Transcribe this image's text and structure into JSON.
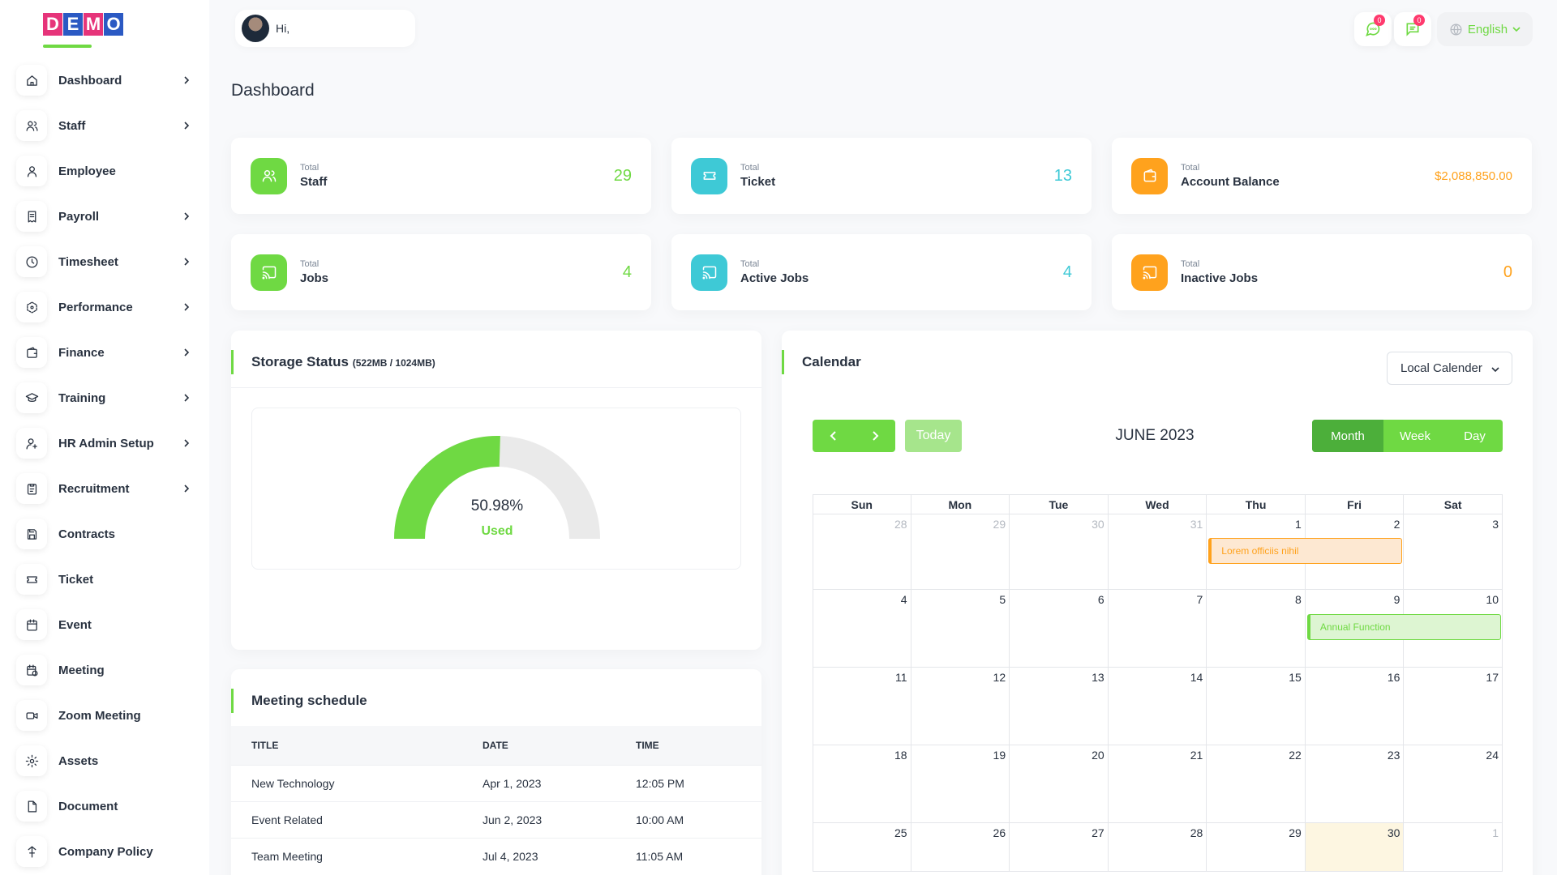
{
  "brand": {
    "logo_letters": [
      "D",
      "E",
      "M",
      "O"
    ],
    "logo_colors": [
      "#e6347a",
      "#2b59c3",
      "#e6347a",
      "#2b59c3"
    ],
    "accent": "#6fd943"
  },
  "header": {
    "greeting": "Hi,",
    "chat_badge": "0",
    "message_badge": "0",
    "language": "English"
  },
  "sidebar": {
    "items": [
      {
        "label": "Dashboard",
        "icon": "home-icon",
        "has_arrow": true
      },
      {
        "label": "Staff",
        "icon": "users-icon",
        "has_arrow": true
      },
      {
        "label": "Employee",
        "icon": "user-icon",
        "has_arrow": false
      },
      {
        "label": "Payroll",
        "icon": "receipt-icon",
        "has_arrow": true
      },
      {
        "label": "Timesheet",
        "icon": "clock-icon",
        "has_arrow": true
      },
      {
        "label": "Performance",
        "icon": "hexagon-icon",
        "has_arrow": true
      },
      {
        "label": "Finance",
        "icon": "wallet-icon",
        "has_arrow": true
      },
      {
        "label": "Training",
        "icon": "graduation-cap-icon",
        "has_arrow": true
      },
      {
        "label": "HR Admin Setup",
        "icon": "user-plus-icon",
        "has_arrow": true
      },
      {
        "label": "Recruitment",
        "icon": "clipboard-icon",
        "has_arrow": true
      },
      {
        "label": "Contracts",
        "icon": "save-icon",
        "has_arrow": false
      },
      {
        "label": "Ticket",
        "icon": "ticket-icon",
        "has_arrow": false
      },
      {
        "label": "Event",
        "icon": "calendar-icon",
        "has_arrow": false
      },
      {
        "label": "Meeting",
        "icon": "calendar-time-icon",
        "has_arrow": false
      },
      {
        "label": "Zoom Meeting",
        "icon": "video-icon",
        "has_arrow": false
      },
      {
        "label": "Assets",
        "icon": "cog-icon",
        "has_arrow": false
      },
      {
        "label": "Document",
        "icon": "file-icon",
        "has_arrow": false
      },
      {
        "label": "Company Policy",
        "icon": "policy-icon",
        "has_arrow": false
      }
    ]
  },
  "page_title": "Dashboard",
  "stats": [
    {
      "small": "Total",
      "name": "Staff",
      "value": "29",
      "color": "#6fd943",
      "icon": "users-icon"
    },
    {
      "small": "Total",
      "name": "Ticket",
      "value": "13",
      "color": "#3ec9d6",
      "icon": "ticket-icon"
    },
    {
      "small": "Total",
      "name": "Account Balance",
      "value": "$2,088,850.00",
      "color": "#ffa21d",
      "icon": "wallet-icon"
    },
    {
      "small": "Total",
      "name": "Jobs",
      "value": "4",
      "color": "#6fd943",
      "icon": "cast-icon"
    },
    {
      "small": "Total",
      "name": "Active Jobs",
      "value": "4",
      "color": "#3ec9d6",
      "icon": "cast-icon"
    },
    {
      "small": "Total",
      "name": "Inactive Jobs",
      "value": "0",
      "color": "#ffa21d",
      "icon": "cast-icon"
    }
  ],
  "storage": {
    "title": "Storage Status",
    "subtitle": "(522MB / 1024MB)",
    "percent_text": "50.98%",
    "used_label": "Used",
    "fraction": 0.5098
  },
  "meetings": {
    "title": "Meeting schedule",
    "columns": [
      "TITLE",
      "DATE",
      "TIME"
    ],
    "rows": [
      [
        "New Technology",
        "Apr 1, 2023",
        "12:05 PM"
      ],
      [
        "Event Related",
        "Jun 2, 2023",
        "10:00 AM"
      ],
      [
        "Team Meeting",
        "Jul 4, 2023",
        "11:05 AM"
      ]
    ]
  },
  "calendar": {
    "title": "Calendar",
    "source": "Local Calender",
    "today_label": "Today",
    "month_title": "JUNE 2023",
    "views": [
      "Month",
      "Week",
      "Day"
    ],
    "active_view": "Month",
    "weekdays": [
      "Sun",
      "Mon",
      "Tue",
      "Wed",
      "Thu",
      "Fri",
      "Sat"
    ],
    "weeks": [
      [
        "28",
        "29",
        "30",
        "31",
        "1",
        "2",
        "3"
      ],
      [
        "4",
        "5",
        "6",
        "7",
        "8",
        "9",
        "10"
      ],
      [
        "11",
        "12",
        "13",
        "14",
        "15",
        "16",
        "17"
      ],
      [
        "18",
        "19",
        "20",
        "21",
        "22",
        "23",
        "24"
      ],
      [
        "25",
        "26",
        "27",
        "28",
        "29",
        "30",
        "1"
      ]
    ],
    "events": [
      {
        "label": "Lorem officiis nihil",
        "color": "#ffa21d",
        "bg": "#fde8d2",
        "week": 0,
        "start": 4,
        "span": 2
      },
      {
        "label": "Annual Function",
        "color": "#6fd943",
        "bg": "#ddf5d2",
        "week": 1,
        "start": 5,
        "span": 2
      }
    ]
  }
}
